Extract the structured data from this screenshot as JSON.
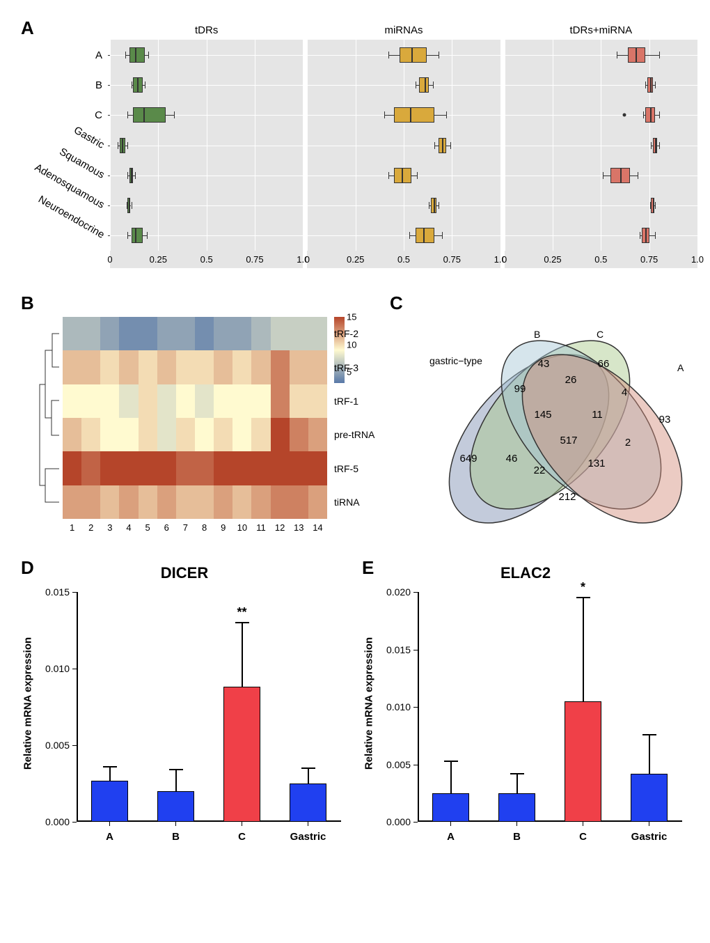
{
  "panelA": {
    "label": "A",
    "facets": [
      "tDRs",
      "miRNAs",
      "tDRs+miRNA"
    ],
    "y_categories": [
      "A",
      "B",
      "C",
      "Gastric",
      "Squamous",
      "Adenosquamous",
      "Neuroendocrine"
    ],
    "y_rotated": [
      false,
      false,
      false,
      true,
      true,
      true,
      true
    ],
    "xticks": [
      0,
      0.25,
      0.5,
      0.75,
      1.0
    ],
    "colors": [
      "#5a8a4a",
      "#d9a93c",
      "#d97568"
    ],
    "background_color": "#e5e5e5",
    "grid_color": "#ffffff",
    "boxes": [
      [
        {
          "q1": 0.1,
          "med": 0.13,
          "q3": 0.18,
          "lo": 0.08,
          "hi": 0.2
        },
        {
          "q1": 0.12,
          "med": 0.14,
          "q3": 0.17,
          "lo": 0.11,
          "hi": 0.18
        },
        {
          "q1": 0.12,
          "med": 0.17,
          "q3": 0.29,
          "lo": 0.09,
          "hi": 0.33
        },
        {
          "q1": 0.05,
          "med": 0.06,
          "q3": 0.08,
          "lo": 0.04,
          "hi": 0.09
        },
        {
          "q1": 0.1,
          "med": 0.11,
          "q3": 0.12,
          "lo": 0.09,
          "hi": 0.13
        },
        {
          "q1": 0.09,
          "med": 0.095,
          "q3": 0.105,
          "lo": 0.085,
          "hi": 0.11
        },
        {
          "q1": 0.11,
          "med": 0.13,
          "q3": 0.17,
          "lo": 0.09,
          "hi": 0.19
        }
      ],
      [
        {
          "q1": 0.48,
          "med": 0.54,
          "q3": 0.62,
          "lo": 0.42,
          "hi": 0.68
        },
        {
          "q1": 0.58,
          "med": 0.61,
          "q3": 0.63,
          "lo": 0.56,
          "hi": 0.65
        },
        {
          "q1": 0.45,
          "med": 0.53,
          "q3": 0.66,
          "lo": 0.4,
          "hi": 0.72
        },
        {
          "q1": 0.68,
          "med": 0.7,
          "q3": 0.72,
          "lo": 0.66,
          "hi": 0.74
        },
        {
          "q1": 0.45,
          "med": 0.49,
          "q3": 0.54,
          "lo": 0.42,
          "hi": 0.57
        },
        {
          "q1": 0.64,
          "med": 0.655,
          "q3": 0.67,
          "lo": 0.63,
          "hi": 0.68
        },
        {
          "q1": 0.56,
          "med": 0.6,
          "q3": 0.66,
          "lo": 0.53,
          "hi": 0.7
        }
      ],
      [
        {
          "q1": 0.64,
          "med": 0.68,
          "q3": 0.73,
          "lo": 0.58,
          "hi": 0.8
        },
        {
          "q1": 0.74,
          "med": 0.755,
          "q3": 0.77,
          "lo": 0.73,
          "hi": 0.78
        },
        {
          "q1": 0.73,
          "med": 0.755,
          "q3": 0.78,
          "lo": 0.72,
          "hi": 0.8,
          "outliers": [
            0.62
          ]
        },
        {
          "q1": 0.77,
          "med": 0.78,
          "q3": 0.79,
          "lo": 0.76,
          "hi": 0.8
        },
        {
          "q1": 0.55,
          "med": 0.6,
          "q3": 0.65,
          "lo": 0.51,
          "hi": 0.69
        },
        {
          "q1": 0.76,
          "med": 0.77,
          "q3": 0.775,
          "lo": 0.755,
          "hi": 0.78
        },
        {
          "q1": 0.71,
          "med": 0.73,
          "q3": 0.75,
          "lo": 0.7,
          "hi": 0.78
        }
      ]
    ]
  },
  "panelB": {
    "label": "B",
    "type": "heatmap",
    "row_labels": [
      "tRF-2",
      "tRF-3",
      "tRF-1",
      "pre-tRNA",
      "tRF-5",
      "tiRNA"
    ],
    "col_labels": [
      "1",
      "2",
      "3",
      "4",
      "5",
      "6",
      "7",
      "8",
      "9",
      "10",
      "11",
      "12",
      "13",
      "14"
    ],
    "colorbar_ticks": [
      5,
      10,
      15
    ],
    "color_low": "#5878a8",
    "color_mid": "#fffad0",
    "color_high": "#b5452a",
    "values": [
      [
        6,
        6,
        5,
        4,
        4,
        5,
        5,
        4,
        5,
        5,
        6,
        7,
        7,
        7
      ],
      [
        11,
        11,
        10,
        11,
        10,
        11,
        10,
        10,
        11,
        10,
        11,
        13,
        11,
        11
      ],
      [
        9,
        9,
        9,
        8,
        10,
        8,
        9,
        8,
        9,
        9,
        9,
        13,
        10,
        10
      ],
      [
        11,
        10,
        9,
        9,
        10,
        8,
        10,
        9,
        10,
        9,
        10,
        15,
        13,
        12
      ],
      [
        15,
        14,
        15,
        15,
        15,
        15,
        14,
        14,
        15,
        15,
        15,
        15,
        15,
        15
      ],
      [
        12,
        12,
        11,
        12,
        11,
        12,
        11,
        11,
        12,
        11,
        12,
        13,
        13,
        12
      ]
    ]
  },
  "panelC": {
    "label": "C",
    "type": "venn",
    "sets": [
      "gastric−type",
      "B",
      "C",
      "A"
    ],
    "colors": {
      "gastric": "#7b8cb0",
      "B": "#a7c788",
      "C": "#a4c5d4",
      "A": "#d28c7a"
    },
    "region_values": {
      "gastric_only": "649",
      "B_only": "43",
      "C_only": "66",
      "A_only": "93",
      "gB": "99",
      "BC": "26",
      "CA": "4",
      "gC": "46",
      "BA": "2",
      "gA": "212",
      "gBC": "145",
      "BCA": "11",
      "gCA": "22",
      "gBA": "131",
      "gBCA": "517"
    }
  },
  "panelD": {
    "label": "D",
    "title": "DICER",
    "type": "bar",
    "ylabel": "Relative mRNA expression",
    "ymax": 0.015,
    "yticks": [
      0.0,
      0.005,
      0.01,
      0.015
    ],
    "categories": [
      "A",
      "B",
      "C",
      "Gastric"
    ],
    "values": [
      0.0027,
      0.002,
      0.0088,
      0.0025
    ],
    "errors": [
      0.0009,
      0.0014,
      0.0042,
      0.001
    ],
    "colors": [
      "#2040f0",
      "#2040f0",
      "#f04048",
      "#2040f0"
    ],
    "sig": {
      "idx": 2,
      "text": "**"
    }
  },
  "panelE": {
    "label": "E",
    "title": "ELAC2",
    "type": "bar",
    "ylabel": "Relative mRNA expression",
    "ymax": 0.02,
    "yticks": [
      0.0,
      0.005,
      0.01,
      0.015,
      0.02
    ],
    "categories": [
      "A",
      "B",
      "C",
      "Gastric"
    ],
    "values": [
      0.0025,
      0.0025,
      0.0105,
      0.0042
    ],
    "errors": [
      0.0028,
      0.0017,
      0.009,
      0.0034
    ],
    "colors": [
      "#2040f0",
      "#2040f0",
      "#f04048",
      "#2040f0"
    ],
    "sig": {
      "idx": 2,
      "text": "*"
    }
  }
}
